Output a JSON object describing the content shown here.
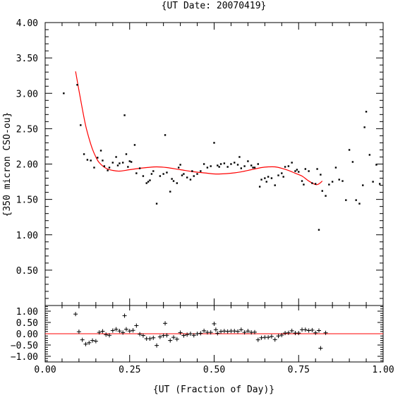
{
  "chart_data": [
    {
      "type": "scatter",
      "panel": "main",
      "title": "{UT Date: 20070419}",
      "xlabel": "",
      "ylabel": "{350 micron CSO-ou}",
      "xlim": [
        0.0,
        1.0
      ],
      "ylim": [
        0.0,
        4.0
      ],
      "x_ticks": [
        "0.00",
        "0.25",
        "0.50",
        "0.75",
        "1.00"
      ],
      "y_ticks": [
        "0.50",
        "1.00",
        "1.50",
        "2.00",
        "2.50",
        "3.00",
        "3.50",
        "4.00"
      ],
      "fit_color": "#ff0000",
      "point_color": "#000000",
      "fit_curve": {
        "model": "polynomial",
        "x": [
          0.09,
          0.1,
          0.11,
          0.12,
          0.13,
          0.14,
          0.15,
          0.16,
          0.18,
          0.2,
          0.22,
          0.25,
          0.28,
          0.3,
          0.33,
          0.36,
          0.4,
          0.44,
          0.48,
          0.5,
          0.52,
          0.55,
          0.58,
          0.61,
          0.64,
          0.66,
          0.68,
          0.7,
          0.72,
          0.74,
          0.76,
          0.78,
          0.8,
          0.81,
          0.82
        ],
        "y": [
          3.31,
          3.04,
          2.78,
          2.54,
          2.36,
          2.21,
          2.1,
          2.02,
          1.94,
          1.91,
          1.9,
          1.92,
          1.94,
          1.95,
          1.96,
          1.95,
          1.92,
          1.89,
          1.87,
          1.86,
          1.86,
          1.87,
          1.89,
          1.92,
          1.95,
          1.96,
          1.96,
          1.94,
          1.91,
          1.87,
          1.83,
          1.76,
          1.71,
          1.72,
          1.76
        ]
      },
      "points": {
        "x": [
          0.055,
          0.095,
          0.105,
          0.115,
          0.125,
          0.135,
          0.145,
          0.155,
          0.165,
          0.17,
          0.175,
          0.185,
          0.19,
          0.2,
          0.21,
          0.215,
          0.22,
          0.23,
          0.235,
          0.24,
          0.245,
          0.25,
          0.255,
          0.265,
          0.27,
          0.28,
          0.29,
          0.3,
          0.305,
          0.31,
          0.315,
          0.32,
          0.33,
          0.34,
          0.35,
          0.355,
          0.36,
          0.37,
          0.375,
          0.38,
          0.39,
          0.395,
          0.4,
          0.405,
          0.41,
          0.42,
          0.43,
          0.435,
          0.44,
          0.45,
          0.46,
          0.47,
          0.48,
          0.49,
          0.5,
          0.51,
          0.515,
          0.52,
          0.53,
          0.54,
          0.55,
          0.56,
          0.57,
          0.575,
          0.58,
          0.59,
          0.6,
          0.61,
          0.615,
          0.62,
          0.63,
          0.635,
          0.64,
          0.65,
          0.655,
          0.66,
          0.67,
          0.68,
          0.69,
          0.7,
          0.705,
          0.71,
          0.72,
          0.73,
          0.74,
          0.745,
          0.75,
          0.76,
          0.765,
          0.77,
          0.78,
          0.79,
          0.8,
          0.805,
          0.81,
          0.815,
          0.82,
          0.83,
          0.84,
          0.85,
          0.86,
          0.87,
          0.88,
          0.89,
          0.9,
          0.91,
          0.92,
          0.93,
          0.94,
          0.945,
          0.95,
          0.96,
          0.97,
          0.98,
          0.99
        ],
        "y": [
          3.0,
          3.12,
          2.55,
          2.14,
          2.06,
          2.05,
          1.95,
          2.09,
          2.19,
          2.05,
          1.97,
          1.91,
          1.95,
          2.02,
          2.1,
          1.98,
          2.01,
          2.02,
          2.69,
          2.14,
          1.96,
          2.04,
          2.03,
          2.27,
          1.87,
          1.94,
          1.83,
          1.73,
          1.75,
          1.77,
          1.86,
          1.9,
          1.44,
          1.83,
          1.86,
          2.41,
          1.88,
          1.61,
          1.79,
          1.76,
          1.73,
          1.95,
          1.99,
          1.84,
          1.86,
          1.81,
          1.78,
          1.9,
          1.83,
          1.86,
          1.9,
          2.0,
          1.95,
          1.97,
          2.3,
          1.98,
          1.96,
          2.0,
          2.01,
          1.96,
          2.0,
          2.02,
          1.99,
          2.1,
          1.94,
          1.97,
          2.04,
          1.98,
          1.95,
          1.95,
          2.0,
          1.68,
          1.78,
          1.8,
          1.75,
          1.82,
          1.8,
          1.7,
          1.84,
          1.87,
          1.82,
          1.96,
          1.97,
          2.02,
          1.9,
          1.92,
          1.89,
          1.76,
          1.71,
          1.93,
          1.9,
          1.73,
          1.72,
          1.93,
          1.07,
          1.85,
          1.62,
          1.55,
          1.71,
          1.75,
          1.95,
          1.78,
          1.76,
          1.49,
          2.2,
          2.03,
          1.49,
          1.44,
          1.7,
          2.52,
          2.74,
          2.13,
          1.75,
          1.99,
          1.72
        ]
      }
    },
    {
      "type": "scatter",
      "panel": "residuals",
      "xlabel": "{UT (Fraction of Day)}",
      "ylabel": "",
      "xlim": [
        0.0,
        1.0
      ],
      "ylim": [
        -1.25,
        1.25
      ],
      "x_ticks": [
        "0.00",
        "0.25",
        "0.50",
        "0.75",
        "1.00"
      ],
      "y_ticks": [
        "1.00",
        "0.50",
        "0.00",
        "−0.50",
        "−1.00"
      ],
      "zero_line_color": "#ff0000",
      "marker": "plus",
      "points": {
        "x": [
          0.09,
          0.1,
          0.11,
          0.12,
          0.13,
          0.14,
          0.15,
          0.16,
          0.17,
          0.18,
          0.19,
          0.2,
          0.21,
          0.22,
          0.23,
          0.235,
          0.24,
          0.25,
          0.26,
          0.27,
          0.28,
          0.29,
          0.3,
          0.31,
          0.32,
          0.33,
          0.34,
          0.35,
          0.355,
          0.36,
          0.37,
          0.38,
          0.39,
          0.4,
          0.41,
          0.42,
          0.43,
          0.44,
          0.45,
          0.46,
          0.47,
          0.48,
          0.49,
          0.5,
          0.505,
          0.51,
          0.52,
          0.53,
          0.54,
          0.55,
          0.56,
          0.57,
          0.58,
          0.59,
          0.6,
          0.61,
          0.62,
          0.63,
          0.64,
          0.65,
          0.66,
          0.67,
          0.68,
          0.69,
          0.7,
          0.71,
          0.72,
          0.73,
          0.74,
          0.75,
          0.76,
          0.77,
          0.78,
          0.79,
          0.8,
          0.81,
          0.815,
          0.83
        ],
        "y": [
          0.87,
          0.09,
          -0.27,
          -0.46,
          -0.4,
          -0.3,
          -0.33,
          0.06,
          0.11,
          -0.04,
          -0.07,
          0.14,
          0.2,
          0.12,
          0.05,
          0.8,
          0.2,
          0.12,
          0.15,
          0.36,
          -0.02,
          -0.08,
          -0.22,
          -0.22,
          -0.18,
          -0.52,
          -0.14,
          -0.08,
          0.46,
          -0.07,
          -0.3,
          -0.16,
          -0.24,
          0.05,
          -0.08,
          -0.04,
          0.0,
          -0.07,
          0.0,
          0.02,
          0.13,
          0.06,
          0.06,
          0.44,
          0.18,
          0.02,
          0.1,
          0.12,
          0.1,
          0.12,
          0.12,
          0.1,
          0.18,
          0.06,
          0.12,
          0.06,
          0.07,
          -0.27,
          -0.18,
          -0.16,
          -0.16,
          -0.12,
          -0.26,
          -0.1,
          -0.06,
          0.03,
          0.04,
          0.13,
          0.03,
          0.03,
          0.18,
          0.18,
          0.14,
          0.16,
          0.04,
          0.14,
          -0.64,
          0.04
        ]
      }
    }
  ]
}
